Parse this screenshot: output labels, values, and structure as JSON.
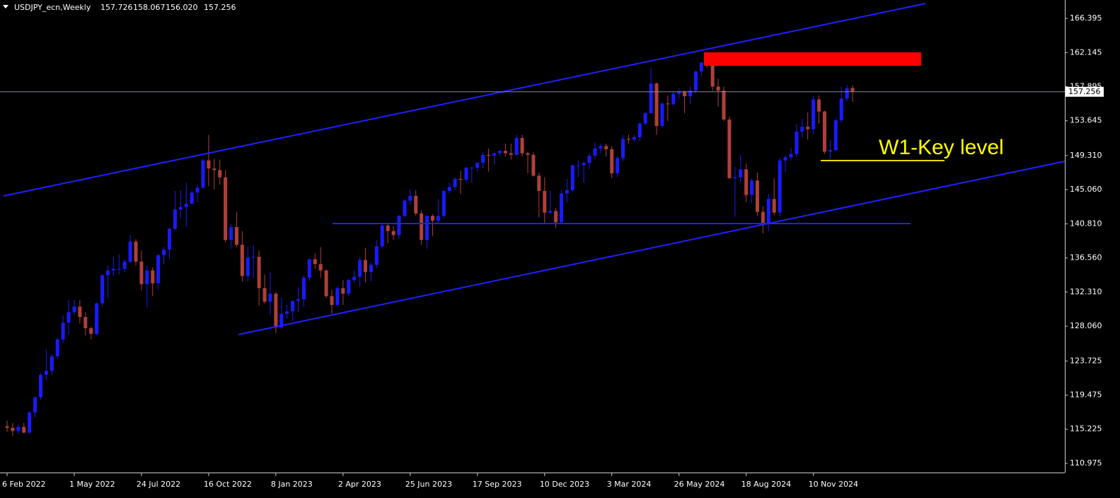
{
  "chart_data": {
    "type": "candlestick",
    "title": "USDJPY_ecn,Weekly",
    "ohlc_labels": [
      "157.726",
      "158.067",
      "156.020",
      "157.256"
    ],
    "annotation": "W1-Key level",
    "up_color": "#1a1aff",
    "down_color": "#b0403a",
    "categories": [
      "6 Feb 2022",
      null,
      null,
      null,
      null,
      null,
      null,
      null,
      null,
      null,
      null,
      null,
      "1 May 2022",
      null,
      null,
      null,
      null,
      null,
      null,
      null,
      null,
      null,
      null,
      null,
      "24 Jul 2022",
      null,
      null,
      null,
      null,
      null,
      null,
      null,
      null,
      null,
      null,
      null,
      "16 Oct 2022",
      null,
      null,
      null,
      null,
      null,
      null,
      null,
      null,
      null,
      null,
      null,
      "8 Jan 2023",
      null,
      null,
      null,
      null,
      null,
      null,
      null,
      null,
      null,
      null,
      null,
      "2 Apr 2023",
      null,
      null,
      null,
      null,
      null,
      null,
      null,
      null,
      null,
      null,
      null,
      "25 Jun 2023",
      null,
      null,
      null,
      null,
      null,
      null,
      null,
      null,
      null,
      null,
      null,
      "17 Sep 2023",
      null,
      null,
      null,
      null,
      null,
      null,
      null,
      null,
      null,
      null,
      null,
      "10 Dec 2023",
      null,
      null,
      null,
      null,
      null,
      null,
      null,
      null,
      null,
      null,
      null,
      "3 Mar 2024",
      null,
      null,
      null,
      null,
      null,
      null,
      null,
      null,
      null,
      null,
      null,
      "26 May 2024",
      null,
      null,
      null,
      null,
      null,
      null,
      null,
      null,
      null,
      null,
      null,
      "18 Aug 2024",
      null,
      null,
      null,
      null,
      null,
      null,
      null,
      null,
      null,
      null,
      null,
      "10 Nov 2024",
      null,
      null,
      null,
      null,
      null,
      null,
      null
    ],
    "open": [
      115.6,
      115.4,
      115.0,
      115.5,
      114.8,
      117.3,
      119.2,
      122.0,
      122.5,
      124.3,
      126.4,
      128.5,
      129.8,
      130.5,
      129.2,
      127.8,
      127.1,
      130.9,
      134.4,
      135.0,
      135.2,
      135.2,
      136.1,
      138.6,
      136.1,
      133.3,
      135.0,
      133.4,
      136.9,
      137.6,
      140.2,
      142.6,
      142.9,
      143.3,
      144.7,
      145.3,
      148.7,
      147.7,
      147.5,
      146.6,
      138.8,
      140.4,
      138.2,
      134.3,
      136.6,
      136.7,
      132.8,
      131.1,
      132.1,
      127.9,
      129.6,
      129.9,
      131.2,
      131.4,
      134.1,
      136.4,
      135.8,
      135.0,
      131.8,
      130.7,
      132.8,
      132.1,
      133.8,
      134.2,
      136.3,
      134.8,
      135.7,
      138.0,
      140.6,
      139.9,
      139.4,
      141.8,
      143.7,
      144.3,
      142.1,
      138.8,
      141.8,
      141.2,
      141.8,
      144.9,
      145.4,
      146.4,
      146.3,
      147.8,
      147.8,
      148.4,
      149.4,
      149.3,
      149.6,
      149.9,
      149.6,
      149.4,
      151.5,
      149.6,
      149.4,
      146.8,
      144.9,
      142.2,
      142.4,
      141.0,
      144.6,
      145.0,
      148.1,
      148.1,
      148.4,
      149.3,
      150.2,
      150.5,
      150.1,
      147.1,
      149.0,
      151.4,
      151.3,
      151.6,
      153.3,
      154.6,
      158.3,
      153.0,
      155.8,
      155.7,
      157.0,
      157.3,
      156.7,
      157.4,
      159.8,
      160.9,
      160.8,
      157.9,
      157.4,
      153.8,
      146.5,
      146.6,
      147.6,
      144.4,
      146.2,
      142.3,
      140.8,
      143.9,
      142.2,
      148.7,
      149.1,
      149.5,
      152.3,
      152.9,
      152.6,
      156.3,
      154.8,
      149.8,
      150.0,
      153.7,
      156.4,
      157.726
    ],
    "high": [
      116.3,
      116.0,
      115.8,
      116.0,
      117.5,
      119.3,
      122.2,
      125.1,
      124.6,
      126.7,
      129.4,
      131.3,
      131.3,
      131.3,
      129.8,
      128.0,
      131.0,
      134.6,
      135.6,
      136.7,
      137.0,
      136.4,
      139.4,
      138.9,
      137.5,
      135.6,
      135.4,
      137.0,
      137.9,
      140.3,
      144.9,
      145.0,
      145.9,
      145.0,
      145.6,
      148.9,
      151.9,
      148.9,
      148.8,
      147.5,
      140.8,
      142.3,
      139.9,
      137.9,
      138.2,
      137.5,
      134.5,
      134.8,
      132.3,
      131.6,
      130.7,
      131.2,
      132.9,
      134.4,
      136.5,
      137.1,
      137.9,
      135.1,
      132.6,
      133.0,
      133.8,
      134.0,
      135.0,
      136.6,
      137.8,
      136.0,
      138.8,
      140.9,
      140.9,
      140.5,
      141.9,
      143.9,
      145.1,
      145.0,
      142.5,
      141.9,
      142.0,
      143.9,
      145.0,
      145.9,
      146.6,
      147.4,
      147.9,
      147.9,
      148.5,
      149.7,
      150.2,
      149.7,
      150.0,
      150.8,
      150.8,
      151.9,
      151.9,
      149.8,
      149.7,
      147.2,
      146.6,
      144.9,
      142.8,
      145.0,
      146.4,
      148.2,
      148.7,
      148.6,
      149.6,
      150.9,
      150.8,
      150.8,
      150.5,
      149.3,
      151.9,
      151.9,
      151.9,
      153.4,
      154.8,
      160.2,
      158.4,
      155.9,
      156.8,
      157.2,
      157.7,
      157.4,
      157.9,
      159.9,
      161.0,
      161.9,
      161.8,
      158.9,
      157.9,
      154.2,
      147.9,
      149.4,
      148.3,
      146.5,
      147.2,
      143.0,
      144.5,
      146.5,
      149.0,
      149.4,
      150.3,
      153.2,
      153.9,
      154.7,
      156.8,
      156.8,
      154.9,
      151.2,
      154.0,
      157.9,
      158.1,
      158.067
    ],
    "low": [
      114.9,
      114.4,
      114.6,
      114.7,
      114.6,
      116.7,
      118.9,
      121.3,
      122.0,
      124.0,
      126.0,
      127.0,
      129.5,
      128.4,
      126.9,
      126.4,
      126.9,
      130.5,
      131.5,
      134.3,
      134.5,
      134.8,
      135.9,
      135.6,
      132.5,
      130.4,
      131.8,
      132.6,
      135.8,
      136.5,
      140.0,
      141.5,
      140.4,
      143.3,
      143.5,
      145.2,
      145.5,
      145.1,
      145.7,
      138.5,
      137.7,
      137.9,
      133.6,
      133.6,
      134.1,
      130.6,
      130.9,
      129.5,
      127.2,
      127.7,
      129.0,
      128.7,
      129.8,
      130.5,
      133.7,
      135.2,
      134.1,
      131.6,
      129.6,
      130.4,
      130.7,
      131.8,
      133.5,
      133.0,
      133.5,
      133.7,
      135.3,
      137.7,
      138.4,
      138.8,
      138.9,
      141.5,
      143.2,
      141.8,
      138.2,
      137.7,
      139.3,
      140.8,
      141.5,
      144.6,
      145.0,
      144.5,
      145.9,
      145.9,
      147.3,
      147.7,
      147.3,
      148.2,
      149.3,
      149.2,
      148.8,
      149.3,
      149.2,
      147.1,
      146.7,
      141.6,
      140.9,
      142.0,
      140.3,
      140.8,
      143.5,
      144.8,
      146.6,
      145.9,
      147.6,
      148.9,
      149.6,
      149.2,
      146.5,
      146.6,
      148.6,
      150.8,
      151.0,
      151.1,
      153.1,
      154.5,
      151.9,
      152.8,
      153.6,
      155.5,
      156.4,
      154.6,
      155.7,
      157.1,
      159.2,
      160.2,
      157.4,
      155.4,
      153.6,
      146.4,
      141.7,
      145.9,
      143.5,
      143.4,
      141.8,
      139.6,
      139.9,
      141.9,
      141.7,
      147.3,
      148.7,
      149.1,
      151.6,
      151.3,
      152.0,
      153.3,
      149.5,
      148.6,
      149.8,
      153.4,
      156.1,
      156.02
    ],
    "close": [
      115.4,
      115.0,
      115.5,
      114.8,
      117.3,
      119.2,
      122.0,
      122.5,
      124.3,
      126.4,
      128.5,
      129.8,
      130.5,
      129.2,
      127.8,
      127.1,
      130.9,
      134.4,
      135.0,
      135.2,
      135.2,
      136.1,
      138.6,
      136.1,
      133.3,
      135.0,
      133.4,
      136.9,
      137.6,
      140.2,
      142.6,
      142.9,
      143.3,
      144.7,
      145.3,
      148.7,
      147.7,
      147.5,
      146.6,
      138.8,
      140.4,
      138.2,
      134.3,
      136.6,
      136.7,
      132.8,
      131.1,
      132.1,
      127.9,
      129.6,
      129.9,
      131.2,
      131.4,
      134.1,
      136.4,
      135.8,
      135.0,
      131.8,
      130.7,
      132.8,
      132.1,
      133.8,
      134.2,
      136.3,
      134.8,
      135.7,
      138.0,
      140.6,
      139.9,
      139.4,
      141.8,
      143.7,
      144.3,
      142.1,
      138.8,
      141.8,
      141.2,
      141.8,
      144.9,
      145.4,
      146.4,
      146.3,
      147.8,
      147.8,
      148.4,
      149.4,
      149.3,
      149.6,
      149.9,
      149.6,
      149.4,
      151.5,
      149.6,
      149.4,
      146.8,
      144.9,
      142.2,
      142.4,
      141.0,
      144.6,
      145.0,
      148.1,
      148.1,
      148.4,
      149.3,
      150.2,
      150.5,
      150.1,
      147.1,
      149.0,
      151.4,
      151.3,
      151.6,
      153.3,
      154.6,
      158.3,
      153.0,
      155.8,
      155.7,
      157.0,
      157.3,
      156.7,
      157.4,
      159.8,
      160.9,
      160.8,
      157.9,
      157.4,
      153.8,
      146.5,
      146.6,
      147.6,
      144.4,
      146.2,
      142.3,
      140.8,
      143.9,
      142.2,
      148.7,
      149.1,
      149.5,
      152.3,
      152.9,
      152.6,
      156.3,
      154.8,
      149.8,
      150.0,
      153.7,
      156.4,
      157.7,
      157.256
    ],
    "ylim": [
      109.65,
      168.69
    ],
    "yticks": [
      166.395,
      162.145,
      157.895,
      153.645,
      {
        "value": 149.31,
        "label": "149.310"
      },
      {
        "value": 145.06,
        "label": "145.060"
      },
      {
        "value": 140.81,
        "label": "140.810"
      },
      {
        "value": 136.56,
        "label": "136.560"
      },
      {
        "value": 132.31,
        "label": "132.310"
      },
      {
        "value": 128.06,
        "label": "128.060"
      },
      123.725,
      119.475,
      115.225,
      110.975
    ]
  }
}
